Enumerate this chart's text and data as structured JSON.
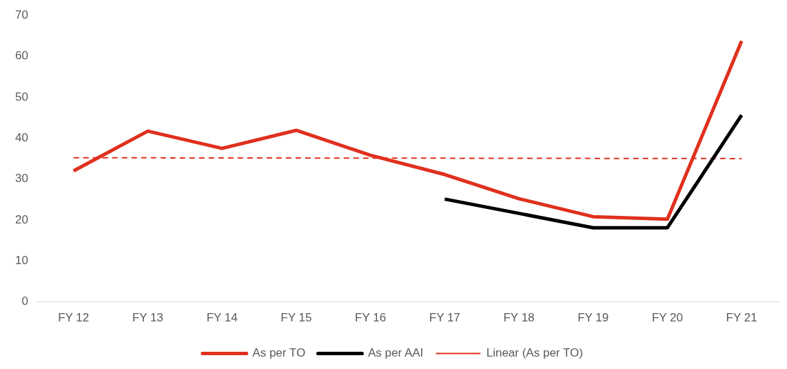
{
  "chart_data": {
    "type": "line",
    "categories": [
      "FY 12",
      "FY 13",
      "FY 14",
      "FY 15",
      "FY 16",
      "FY 17",
      "FY 18",
      "FY 19",
      "FY 20",
      "FY 21"
    ],
    "series": [
      {
        "name": "As per TO",
        "color": "#e0301e",
        "values": [
          32,
          41.7,
          37.5,
          41.9,
          35.8,
          31.1,
          25.2,
          20.8,
          20.2,
          63.7
        ]
      },
      {
        "name": "As per AAI",
        "color": "#000000",
        "values": [
          null,
          null,
          null,
          null,
          null,
          25.1,
          21.6,
          18.1,
          18.1,
          45.6
        ]
      },
      {
        "name": "Linear (As per TO)",
        "color": "#e0301e",
        "line_style": "dashed",
        "values": [
          35.2,
          null,
          null,
          null,
          null,
          null,
          null,
          null,
          null,
          35.0
        ]
      }
    ],
    "ylim": [
      0,
      70
    ],
    "yticks": [
      0,
      10,
      20,
      30,
      40,
      50,
      60,
      70
    ],
    "grid": false,
    "legend": "bottom",
    "marker": "none",
    "line_style": "solid"
  }
}
